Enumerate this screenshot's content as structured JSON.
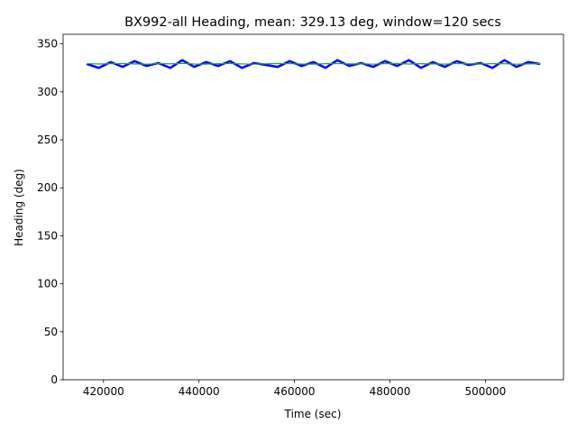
{
  "chart_data": {
    "type": "line",
    "title": "BX992-all Heading, mean: 329.13 deg, window=120 secs",
    "xlabel": "Time (sec)",
    "ylabel": "Heading (deg)",
    "x": [
      416500,
      419000,
      421500,
      424000,
      426500,
      429000,
      431500,
      434000,
      436500,
      439000,
      441500,
      444000,
      446500,
      449000,
      451500,
      454000,
      456500,
      459000,
      461500,
      464000,
      466500,
      469000,
      471500,
      474000,
      476500,
      479000,
      481500,
      484000,
      486500,
      489000,
      491500,
      494000,
      496500,
      499000,
      501500,
      504000,
      506500,
      509000,
      511500
    ],
    "series": [
      {
        "color": "#0000ff",
        "values": [
          329,
          325,
          331,
          326,
          332,
          327,
          330,
          325,
          333,
          326,
          331,
          327,
          332,
          325,
          330,
          328,
          326,
          332,
          327,
          331,
          325,
          333,
          327,
          330,
          326,
          332,
          327,
          333,
          325,
          331,
          326,
          332,
          328,
          330,
          325,
          333,
          326,
          331,
          329
        ]
      },
      {
        "color": "#2ca02c",
        "values": [
          329.5,
          329,
          329.3,
          329.6,
          329.1,
          328.8,
          329.4,
          329.2,
          329.7,
          329.0,
          328.9,
          329.3,
          329.5,
          329.1,
          328.8,
          329.2,
          329.6,
          329.4,
          329.0,
          328.9,
          329.3,
          329.5,
          329.1,
          329.2,
          328.8,
          329.4,
          329.6,
          329.0,
          329.3,
          329.1,
          328.9,
          329.5,
          329.2,
          329.0,
          329.4,
          329.3,
          328.8,
          329.1,
          329.4
        ]
      }
    ],
    "xlim": [
      411535,
      516365
    ],
    "xticks": [
      420000,
      440000,
      460000,
      480000,
      500000
    ],
    "ylim": [
      0,
      360
    ],
    "yticks": [
      0,
      50,
      100,
      150,
      200,
      250,
      300,
      350
    ]
  }
}
